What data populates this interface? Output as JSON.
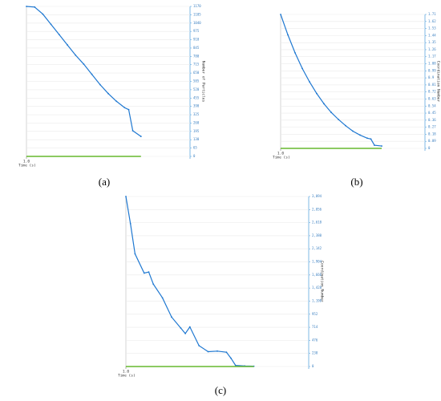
{
  "chart_data": [
    {
      "type": "line",
      "caption": "(a)",
      "x_label": "Time (s)",
      "y_label": "Number of Particles",
      "x": [
        1,
        1.5,
        2,
        2.5,
        3,
        3.5,
        4,
        4.5,
        5,
        5.5,
        6,
        6.5,
        7,
        7.25,
        7.5,
        8
      ],
      "series": [
        {
          "color": "#1f78d1",
          "values": [
            1170,
            1165,
            1110,
            1030,
            950,
            870,
            790,
            720,
            640,
            560,
            490,
            430,
            380,
            365,
            200,
            156
          ]
        },
        {
          "color": "#66b82e",
          "values": [
            0,
            0,
            0,
            0,
            0,
            0,
            0,
            0,
            0,
            0,
            0,
            0,
            0,
            0,
            0,
            0
          ]
        }
      ],
      "xlim": [
        1,
        11
      ],
      "xticks": [
        {
          "value": 1,
          "label": "1.0"
        }
      ],
      "ylim": [
        0,
        1170
      ],
      "yticks": [
        0,
        65,
        130,
        195,
        260,
        325,
        390,
        455,
        520,
        585,
        650,
        715,
        780,
        845,
        910,
        975,
        1040,
        1105,
        1170
      ],
      "grid": true
    },
    {
      "type": "line",
      "caption": "(b)",
      "x_label": "Time (s)",
      "y_label": "Coordination Number",
      "x": [
        1,
        1.5,
        2,
        2.5,
        3,
        3.5,
        4,
        4.5,
        5,
        5.5,
        6,
        6.5,
        7,
        7.25,
        7.5,
        8
      ],
      "series": [
        {
          "color": "#1f78d1",
          "values": [
            1.71,
            1.45,
            1.22,
            1.02,
            0.85,
            0.7,
            0.57,
            0.46,
            0.37,
            0.29,
            0.22,
            0.17,
            0.13,
            0.12,
            0.04,
            0.03
          ]
        },
        {
          "color": "#66b82e",
          "values": [
            0,
            0,
            0,
            0,
            0,
            0,
            0,
            0,
            0,
            0,
            0,
            0,
            0,
            0,
            0,
            0
          ]
        }
      ],
      "xlim": [
        1,
        11
      ],
      "xticks": [
        {
          "value": 1,
          "label": "1.0"
        }
      ],
      "ylim": [
        0,
        1.71
      ],
      "yticks": [
        0,
        0.09,
        0.18,
        0.27,
        0.36,
        0.45,
        0.54,
        0.63,
        0.72,
        0.81,
        0.9,
        0.99,
        1.08,
        1.17,
        1.26,
        1.35,
        1.44,
        1.53,
        1.62,
        1.71
      ],
      "grid": true
    },
    {
      "type": "line",
      "caption": "(c)",
      "x_label": "Time (s)",
      "y_label": "Coordination Number",
      "x": [
        1,
        1.25,
        1.5,
        2,
        2.25,
        2.5,
        3,
        3.5,
        4,
        4.25,
        4.5,
        5,
        5.5,
        6,
        6.5,
        6.75,
        7,
        7.5,
        8
      ],
      "series": [
        {
          "color": "#1f78d1",
          "values": [
            3094,
            2600,
            2050,
            1700,
            1720,
            1500,
            1250,
            900,
            700,
            600,
            720,
            380,
            270,
            280,
            260,
            150,
            20,
            10,
            5
          ]
        },
        {
          "color": "#66b82e",
          "values": [
            0,
            0,
            0,
            0,
            0,
            0,
            0,
            0,
            0,
            0,
            0,
            0,
            0,
            0,
            0,
            0,
            0,
            0,
            0
          ]
        }
      ],
      "xlim": [
        1,
        11
      ],
      "xticks": [
        {
          "value": 1,
          "label": "1.0"
        }
      ],
      "ylim": [
        0,
        3094
      ],
      "yticks": [
        0,
        238,
        476,
        714,
        952,
        {
          "value": 1190,
          "label": "1,190"
        },
        {
          "value": 1428,
          "label": "1,428"
        },
        {
          "value": 1666,
          "label": "1,666"
        },
        {
          "value": 1904,
          "label": "1,904"
        },
        {
          "value": 2142,
          "label": "2,142"
        },
        {
          "value": 2380,
          "label": "2,380"
        },
        {
          "value": 2618,
          "label": "2,618"
        },
        {
          "value": 2856,
          "label": "2,856"
        },
        {
          "value": 3094,
          "label": "3,094"
        }
      ],
      "grid": true
    }
  ]
}
